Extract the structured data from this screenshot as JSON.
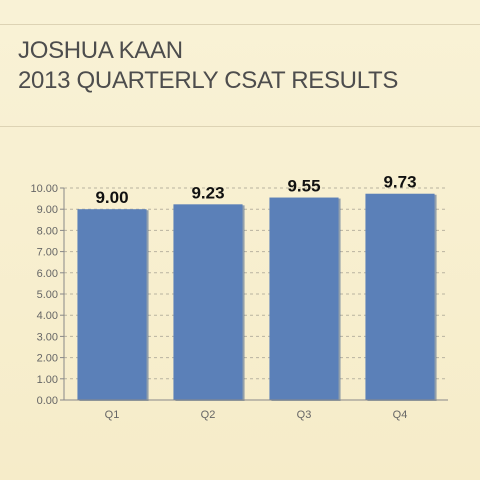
{
  "header": {
    "title_line1": "JOSHUA KAAN",
    "title_line2": "2013 QUARTERLY CSAT RESULTS"
  },
  "chart_data": {
    "type": "bar",
    "categories": [
      "Q1",
      "Q2",
      "Q3",
      "Q4"
    ],
    "values": [
      9.0,
      9.23,
      9.55,
      9.73
    ],
    "data_labels": [
      "9.00",
      "9.23",
      "9.55",
      "9.73"
    ],
    "ylim": [
      0,
      10
    ],
    "yticks": [
      "0.00",
      "1.00",
      "2.00",
      "3.00",
      "4.00",
      "5.00",
      "6.00",
      "7.00",
      "8.00",
      "9.00",
      "10.00"
    ],
    "grid": true,
    "legend": "none",
    "bar_color": "#5b80b8"
  }
}
